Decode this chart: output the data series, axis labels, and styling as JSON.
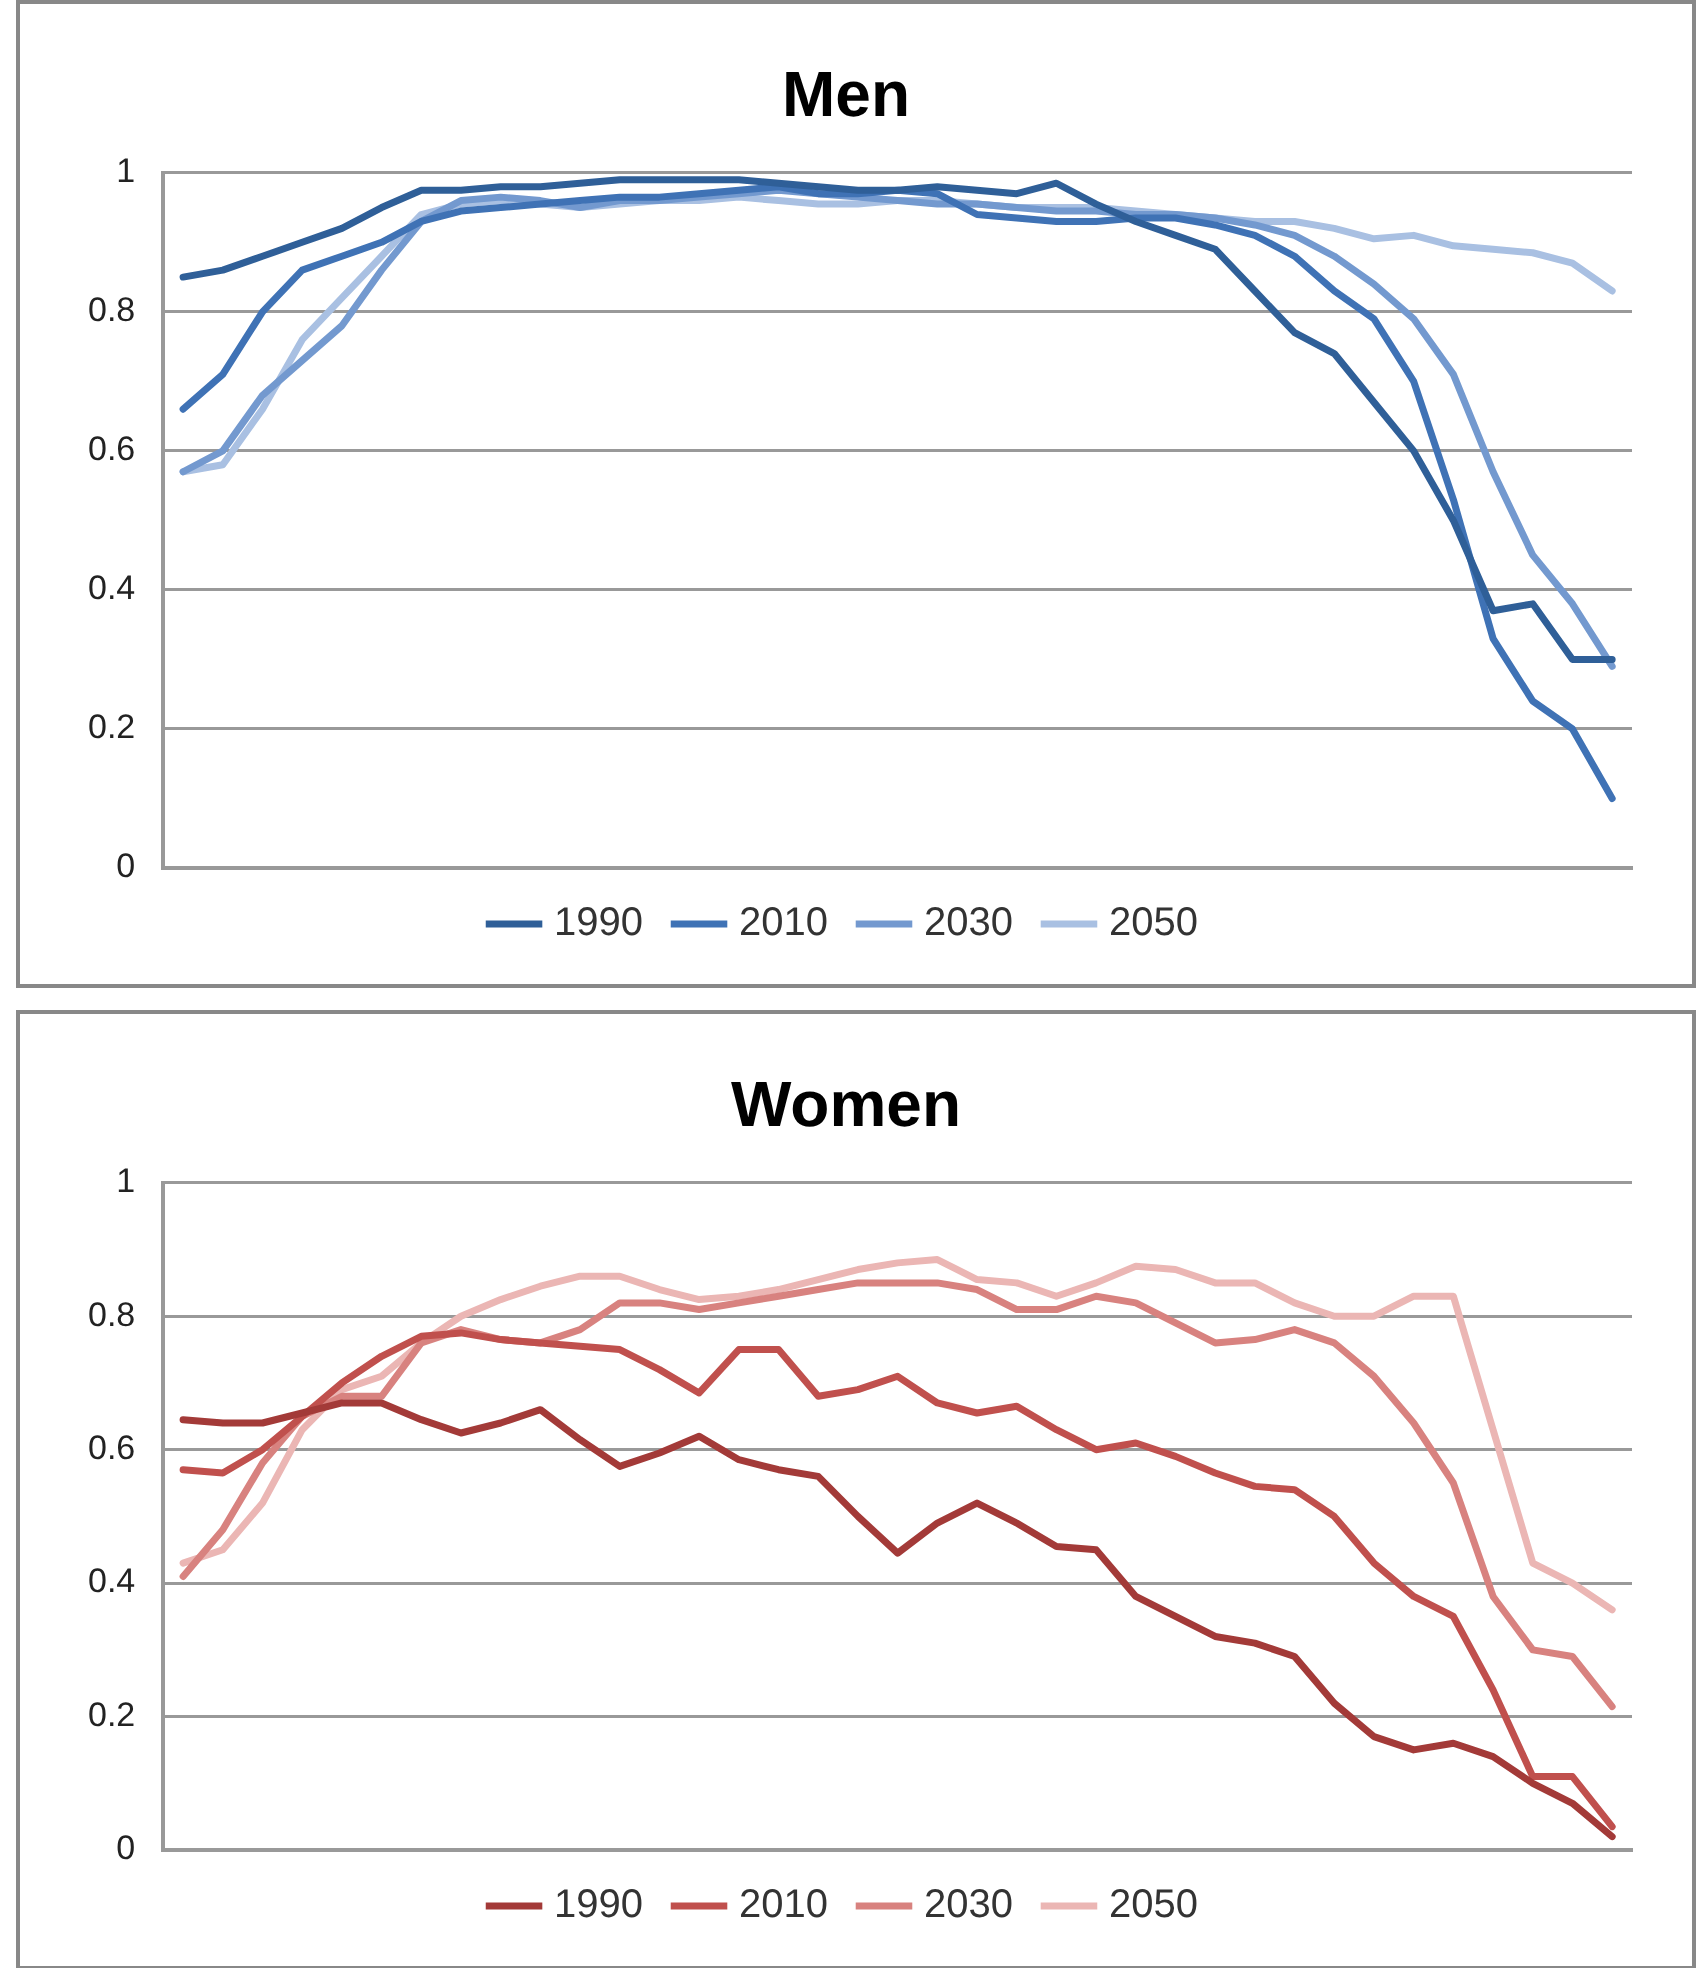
{
  "chart_data": [
    {
      "type": "line",
      "title": "Men",
      "categories": [
        null,
        null,
        null,
        null,
        null,
        null,
        null,
        null,
        null,
        null,
        null,
        null,
        null,
        null,
        null,
        null,
        null,
        null,
        null,
        null,
        null,
        null,
        null,
        null,
        null,
        null,
        null,
        null,
        null,
        null,
        null,
        null,
        null,
        null,
        null,
        null,
        null
      ],
      "ylim": [
        0,
        1
      ],
      "yticks": [
        0,
        0.2,
        0.4,
        0.6,
        0.8,
        1
      ],
      "grid": "y",
      "legend": "bottom",
      "marker": "none",
      "tick_labels": "y",
      "series": [
        {
          "name": "1990",
          "color": "#2f5f98",
          "values": [
            0.85,
            0.86,
            0.88,
            0.9,
            0.92,
            0.95,
            0.975,
            0.975,
            0.98,
            0.98,
            0.985,
            0.99,
            0.99,
            0.99,
            0.99,
            0.985,
            0.98,
            0.975,
            0.975,
            0.98,
            0.975,
            0.97,
            0.985,
            0.955,
            0.93,
            0.91,
            0.89,
            0.83,
            0.77,
            0.74,
            0.67,
            0.6,
            0.5,
            0.37,
            0.38,
            0.3,
            0.3
          ]
        },
        {
          "name": "2010",
          "color": "#3f72b5",
          "values": [
            0.66,
            0.71,
            0.8,
            0.86,
            0.88,
            0.9,
            0.93,
            0.945,
            0.95,
            0.955,
            0.96,
            0.965,
            0.965,
            0.97,
            0.975,
            0.98,
            0.97,
            0.97,
            0.975,
            0.97,
            0.94,
            0.935,
            0.93,
            0.93,
            0.935,
            0.935,
            0.925,
            0.91,
            0.88,
            0.83,
            0.79,
            0.7,
            0.53,
            0.33,
            0.24,
            0.2,
            0.1
          ]
        },
        {
          "name": "2030",
          "color": "#7399cf",
          "values": [
            0.57,
            0.6,
            0.68,
            0.73,
            0.78,
            0.86,
            0.93,
            0.96,
            0.965,
            0.96,
            0.95,
            0.96,
            0.96,
            0.965,
            0.97,
            0.975,
            0.97,
            0.965,
            0.96,
            0.955,
            0.955,
            0.95,
            0.945,
            0.945,
            0.94,
            0.94,
            0.935,
            0.925,
            0.91,
            0.88,
            0.84,
            0.79,
            0.71,
            0.57,
            0.45,
            0.38,
            0.29
          ]
        },
        {
          "name": "2050",
          "color": "#a9c0e2",
          "values": [
            0.57,
            0.58,
            0.66,
            0.76,
            0.82,
            0.88,
            0.94,
            0.955,
            0.96,
            0.955,
            0.95,
            0.955,
            0.96,
            0.96,
            0.965,
            0.96,
            0.955,
            0.955,
            0.96,
            0.96,
            0.955,
            0.95,
            0.95,
            0.95,
            0.945,
            0.94,
            0.935,
            0.93,
            0.93,
            0.92,
            0.905,
            0.91,
            0.895,
            0.89,
            0.885,
            0.87,
            0.83
          ]
        }
      ]
    },
    {
      "type": "line",
      "title": "Women",
      "categories": [
        null,
        null,
        null,
        null,
        null,
        null,
        null,
        null,
        null,
        null,
        null,
        null,
        null,
        null,
        null,
        null,
        null,
        null,
        null,
        null,
        null,
        null,
        null,
        null,
        null,
        null,
        null,
        null,
        null,
        null,
        null,
        null,
        null,
        null,
        null,
        null,
        null
      ],
      "ylim": [
        0,
        1
      ],
      "yticks": [
        0,
        0.2,
        0.4,
        0.6,
        0.8,
        1
      ],
      "grid": "y",
      "legend": "bottom",
      "marker": "none",
      "tick_labels": "y",
      "series": [
        {
          "name": "1990",
          "color": "#a33a38",
          "values": [
            0.645,
            0.64,
            0.64,
            0.655,
            0.67,
            0.67,
            0.645,
            0.625,
            0.64,
            0.66,
            0.615,
            0.575,
            0.595,
            0.62,
            0.585,
            0.57,
            0.56,
            0.5,
            0.445,
            0.49,
            0.52,
            0.49,
            0.455,
            0.45,
            0.38,
            0.35,
            0.32,
            0.31,
            0.29,
            0.22,
            0.17,
            0.15,
            0.16,
            0.14,
            0.1,
            0.07,
            0.02
          ]
        },
        {
          "name": "2010",
          "color": "#c0504d",
          "values": [
            0.57,
            0.565,
            0.6,
            0.65,
            0.7,
            0.74,
            0.77,
            0.775,
            0.765,
            0.76,
            0.755,
            0.75,
            0.72,
            0.685,
            0.75,
            0.75,
            0.68,
            0.69,
            0.71,
            0.67,
            0.655,
            0.665,
            0.63,
            0.6,
            0.61,
            0.59,
            0.565,
            0.545,
            0.54,
            0.5,
            0.43,
            0.38,
            0.35,
            0.24,
            0.11,
            0.11,
            0.035
          ]
        },
        {
          "name": "2030",
          "color": "#d8827f",
          "values": [
            0.41,
            0.48,
            0.58,
            0.65,
            0.68,
            0.68,
            0.76,
            0.78,
            0.765,
            0.76,
            0.78,
            0.82,
            0.82,
            0.81,
            0.82,
            0.83,
            0.84,
            0.85,
            0.85,
            0.85,
            0.84,
            0.81,
            0.81,
            0.83,
            0.82,
            0.79,
            0.76,
            0.765,
            0.78,
            0.76,
            0.71,
            0.64,
            0.55,
            0.38,
            0.3,
            0.29,
            0.215
          ]
        },
        {
          "name": "2050",
          "color": "#ebb6b4",
          "values": [
            0.43,
            0.45,
            0.52,
            0.63,
            0.69,
            0.71,
            0.76,
            0.8,
            0.825,
            0.845,
            0.86,
            0.86,
            0.84,
            0.825,
            0.83,
            0.84,
            0.855,
            0.87,
            0.88,
            0.885,
            0.855,
            0.85,
            0.83,
            0.85,
            0.875,
            0.87,
            0.85,
            0.85,
            0.82,
            0.8,
            0.8,
            0.83,
            0.83,
            0.63,
            0.43,
            0.4,
            0.36
          ]
        }
      ]
    }
  ]
}
